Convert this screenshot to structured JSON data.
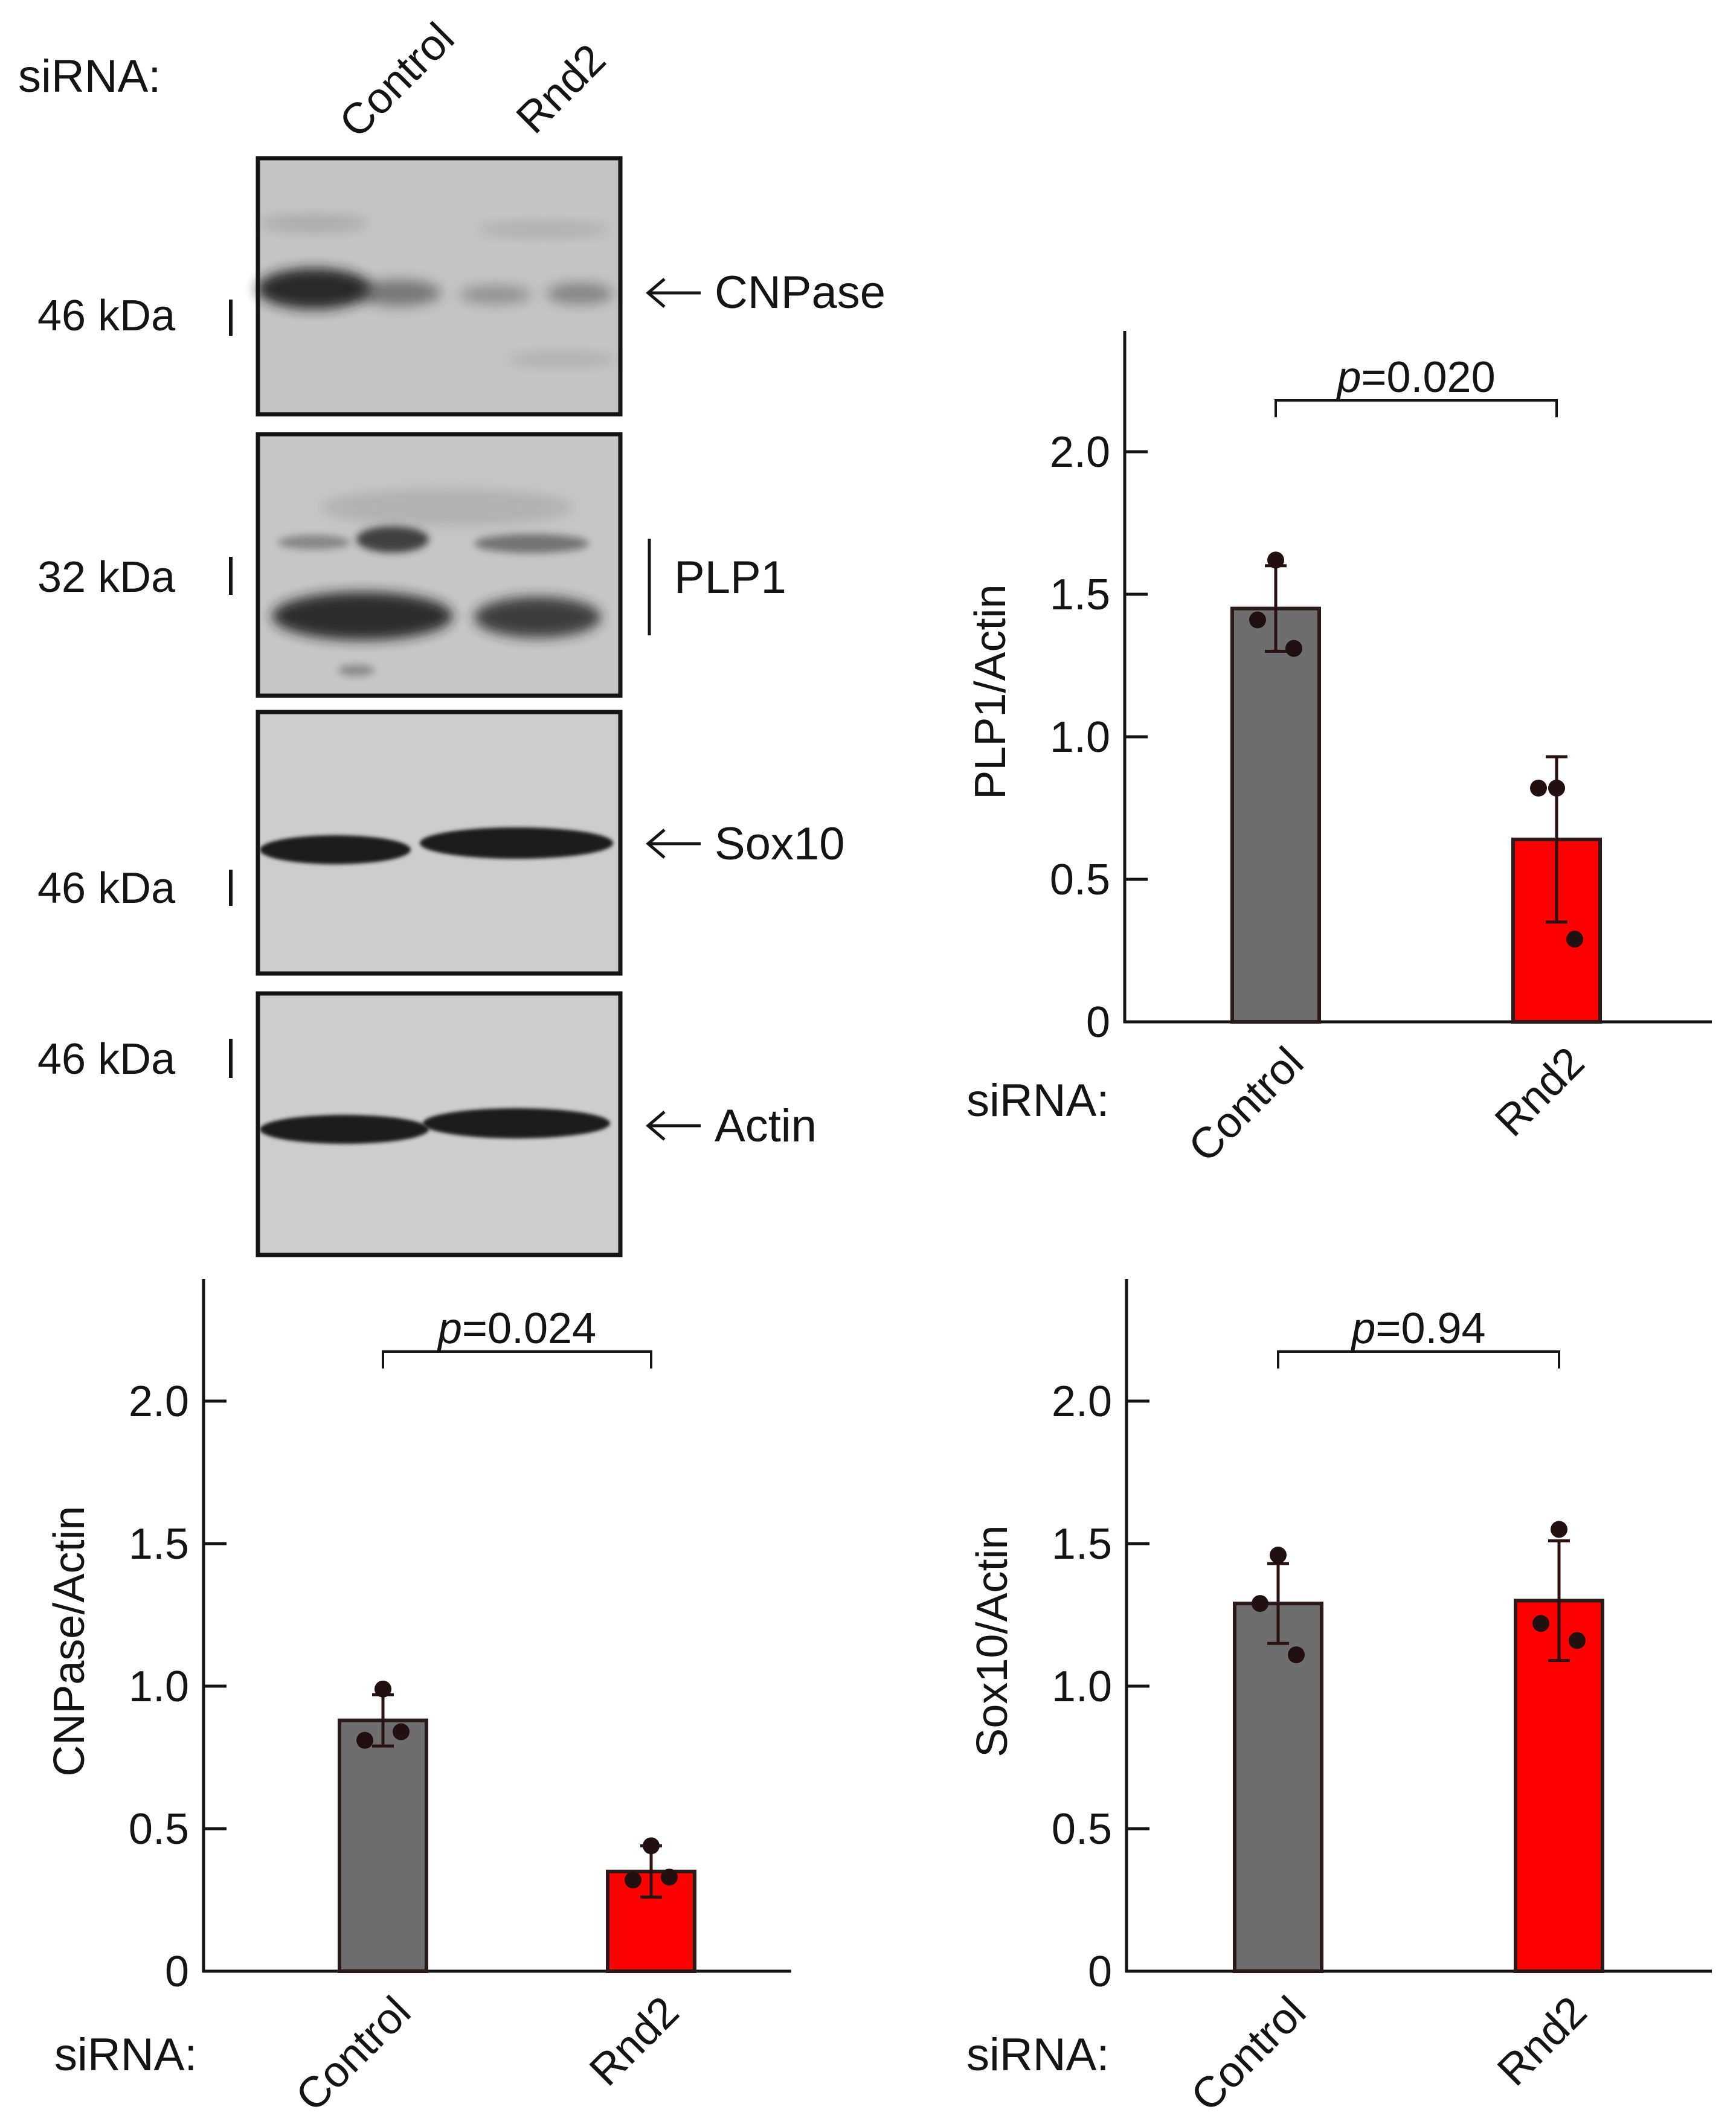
{
  "blot": {
    "header_label": "siRNA:",
    "lanes": [
      "Control",
      "Rnd2"
    ],
    "panels": [
      {
        "marker": "46 kDa",
        "protein": "CNPase",
        "pointer": "arrow"
      },
      {
        "marker": "32 kDa",
        "protein": "PLP1",
        "pointer": "bracket"
      },
      {
        "marker": "46 kDa",
        "protein": "Sox10",
        "pointer": "arrow"
      },
      {
        "marker": "46 kDa",
        "protein": "Actin",
        "pointer": "arrow"
      }
    ],
    "colors": {
      "membrane": "#c9c9c9",
      "band": "#262626",
      "frame": "#141414"
    }
  },
  "chart_data": [
    {
      "type": "bar",
      "ylabel": "PLP1/Actin",
      "xlabel": "siRNA:",
      "categories": [
        "Control",
        "Rnd2"
      ],
      "values": [
        1.45,
        0.64
      ],
      "error": [
        0.15,
        0.29
      ],
      "points": [
        [
          1.62,
          1.41,
          1.31
        ],
        [
          0.82,
          0.82,
          0.29
        ]
      ],
      "colors": [
        "#6e6e6e",
        "#ff0000"
      ],
      "ylim": [
        0,
        2.4
      ],
      "yticks": [
        0,
        0.5,
        1.0,
        1.5,
        2.0
      ],
      "yticklabels": [
        "0",
        "0.5",
        "1.0",
        "1.5",
        "2.0"
      ],
      "pvalue_prefix": "p",
      "pvalue_text": "=0.020",
      "grid": false
    },
    {
      "type": "bar",
      "ylabel": "CNPase/Actin",
      "xlabel": "siRNA:",
      "categories": [
        "Control",
        "Rnd2"
      ],
      "values": [
        0.88,
        0.35
      ],
      "error": [
        0.09,
        0.09
      ],
      "points": [
        [
          0.99,
          0.81,
          0.84
        ],
        [
          0.44,
          0.32,
          0.33
        ]
      ],
      "colors": [
        "#6e6e6e",
        "#ff0000"
      ],
      "ylim": [
        0,
        2.4
      ],
      "yticks": [
        0,
        0.5,
        1.0,
        1.5,
        2.0
      ],
      "yticklabels": [
        "0",
        "0.5",
        "1.0",
        "1.5",
        "2.0"
      ],
      "pvalue_prefix": "p",
      "pvalue_text": "=0.024",
      "grid": false
    },
    {
      "type": "bar",
      "ylabel": "Sox10/Actin",
      "xlabel": "siRNA:",
      "categories": [
        "Control",
        "Rnd2"
      ],
      "values": [
        1.29,
        1.3
      ],
      "error": [
        0.14,
        0.21
      ],
      "points": [
        [
          1.46,
          1.29,
          1.11
        ],
        [
          1.55,
          1.22,
          1.16
        ]
      ],
      "colors": [
        "#6e6e6e",
        "#ff0000"
      ],
      "ylim": [
        0,
        2.4
      ],
      "yticks": [
        0,
        0.5,
        1.0,
        1.5,
        2.0
      ],
      "yticklabels": [
        "0",
        "0.5",
        "1.0",
        "1.5",
        "2.0"
      ],
      "pvalue_prefix": "p",
      "pvalue_text": "=0.94",
      "grid": false
    }
  ]
}
